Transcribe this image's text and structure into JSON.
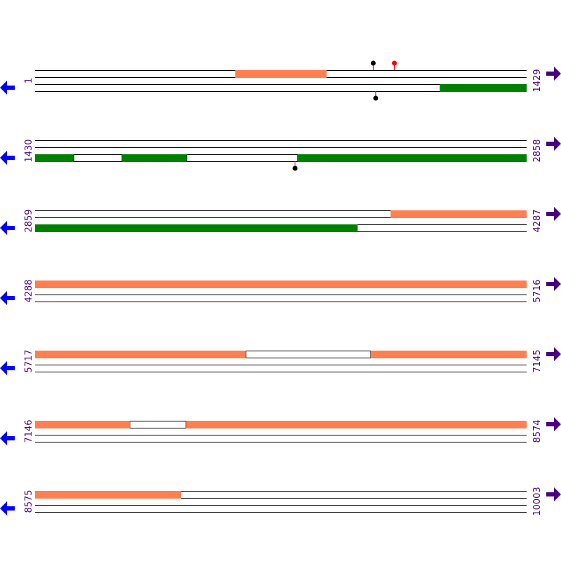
{
  "colors": {
    "track_line": "#000000",
    "plus_feature": "#ff7f50",
    "minus_feature": "#008000",
    "label_color": "#4b0082",
    "left_arrow": "#0000ff",
    "right_arrow": "#4b0082",
    "marker_stem": "#ff0000",
    "marker_black": "#000000",
    "marker_red": "#ff0000"
  },
  "icons": {
    "left": "arrow-left-icon",
    "right": "arrow-right-icon"
  },
  "rows": [
    {
      "start": "1",
      "end": "1429",
      "plus_segments": [
        [
          0.407,
          0.593
        ]
      ],
      "minus_segments": [
        [
          0.823,
          1.0
        ]
      ],
      "markers": [
        {
          "frac": 0.688,
          "side": "above",
          "color": "black"
        },
        {
          "frac": 0.731,
          "side": "above",
          "color": "red"
        },
        {
          "frac": 0.693,
          "side": "below",
          "color": "black"
        }
      ]
    },
    {
      "start": "1430",
      "end": "2858",
      "plus_segments": [],
      "minus_segments": [
        [
          0.0,
          0.079
        ],
        [
          0.177,
          0.309
        ],
        [
          0.534,
          1.0
        ]
      ],
      "minus_gaps": [
        [
          0.079,
          0.177
        ],
        [
          0.309,
          0.534
        ]
      ],
      "markers": [
        {
          "frac": 0.529,
          "side": "below",
          "color": "black"
        }
      ]
    },
    {
      "start": "2859",
      "end": "4287",
      "plus_segments": [
        [
          0.723,
          1.0
        ]
      ],
      "minus_segments": [
        [
          0.0,
          0.656
        ]
      ],
      "markers": []
    },
    {
      "start": "4288",
      "end": "5716",
      "plus_segments": [
        [
          0.0,
          1.0
        ]
      ],
      "minus_segments": [],
      "markers": []
    },
    {
      "start": "5717",
      "end": "7145",
      "plus_segments": [
        [
          0.0,
          0.429
        ],
        [
          0.683,
          1.0
        ]
      ],
      "plus_gaps": [
        [
          0.429,
          0.683
        ]
      ],
      "minus_segments": [],
      "markers": []
    },
    {
      "start": "7146",
      "end": "8574",
      "plus_segments": [
        [
          0.0,
          0.193
        ],
        [
          0.307,
          1.0
        ]
      ],
      "plus_gaps": [
        [
          0.193,
          0.307
        ]
      ],
      "minus_segments": [],
      "markers": []
    },
    {
      "start": "8575",
      "end": "10003",
      "plus_segments": [
        [
          0.0,
          0.297
        ]
      ],
      "minus_segments": [],
      "markers": []
    }
  ]
}
